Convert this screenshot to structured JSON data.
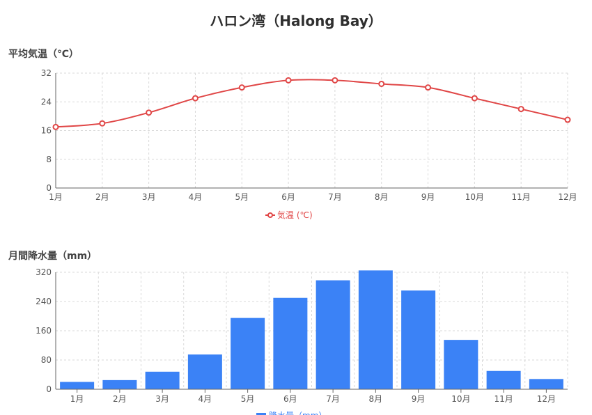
{
  "title": "ハロン湾（Halong Bay）",
  "colors": {
    "temp": "#e04646",
    "rain": "#3b82f6"
  },
  "chart_data": [
    {
      "type": "line",
      "title": "平均気温（℃）",
      "categories": [
        "1月",
        "2月",
        "3月",
        "4月",
        "5月",
        "6月",
        "7月",
        "8月",
        "9月",
        "10月",
        "11月",
        "12月"
      ],
      "series": [
        {
          "name": "気温 (℃)",
          "values": [
            17,
            18,
            21,
            25,
            28,
            30,
            30,
            29,
            28,
            25,
            22,
            19
          ]
        }
      ],
      "ylim": [
        0,
        32
      ],
      "yticks": [
        0,
        8,
        16,
        24,
        32
      ],
      "grid": true,
      "legend": "bottom"
    },
    {
      "type": "bar",
      "title": "月間降水量（mm）",
      "categories": [
        "1月",
        "2月",
        "3月",
        "4月",
        "5月",
        "6月",
        "7月",
        "8月",
        "9月",
        "10月",
        "11月",
        "12月"
      ],
      "series": [
        {
          "name": "降水量（mm）",
          "values": [
            20,
            25,
            48,
            95,
            195,
            250,
            298,
            325,
            270,
            135,
            50,
            28
          ]
        }
      ],
      "ylim": [
        0,
        320
      ],
      "yticks": [
        0,
        80,
        160,
        240,
        320
      ],
      "grid": true,
      "legend": "bottom"
    }
  ]
}
